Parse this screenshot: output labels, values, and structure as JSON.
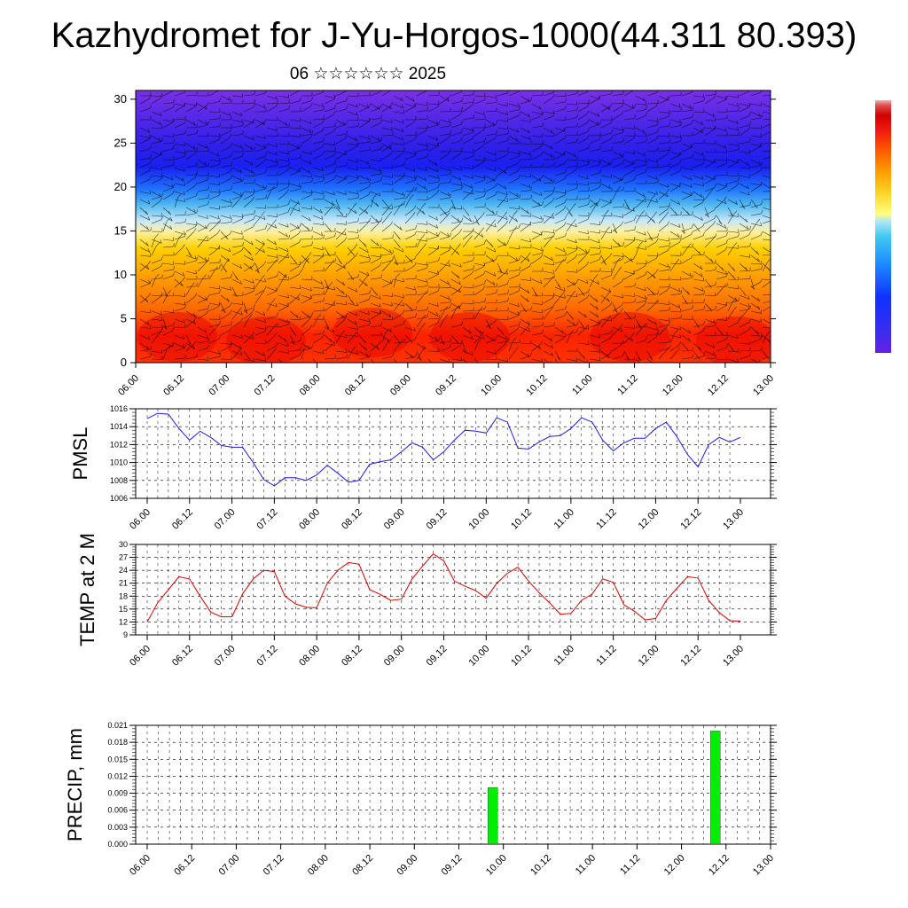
{
  "title": "Kazhydromet for J-Yu-Horgos-1000(44.311 80.393)",
  "subtitle": "06 ☆☆☆☆☆☆ 2025",
  "time_labels": [
    "06.00",
    "06.12",
    "07.00",
    "07.12",
    "08.00",
    "08.12",
    "09.00",
    "09.12",
    "10.00",
    "10.12",
    "11.00",
    "11.12",
    "12.00",
    "12.12",
    "13.00"
  ],
  "colors": {
    "pmsl_line": "#1a1aff",
    "temp_line": "#e00000",
    "precip_bar": "#00ee00",
    "colorbar": [
      "#6a1fe6",
      "#3a2df0",
      "#1030ff",
      "#1e90ff",
      "#40c8f0",
      "#b0e4f5",
      "#ffff80",
      "#ffd020",
      "#ff9a00",
      "#ff5a00",
      "#f01a10",
      "#d00000",
      "#e05050",
      "#f0b0b0"
    ]
  },
  "chart_data": [
    {
      "type": "heatmap",
      "title": "Kazhydromet for J-Yu-Horgos-1000(44.311 80.393)",
      "subtitle": "06 ☆☆☆☆☆☆ 2025",
      "x_ticks": [
        "06.00",
        "06.12",
        "07.00",
        "07.12",
        "08.00",
        "08.12",
        "09.00",
        "09.12",
        "10.00",
        "10.12",
        "11.00",
        "11.12",
        "12.00",
        "12.12",
        "13.00"
      ],
      "y_ticks": [
        0,
        5,
        10,
        15,
        20,
        25,
        30
      ],
      "ylim": [
        0,
        31
      ],
      "overlay": "wind barbs",
      "color_bands": [
        {
          "from": 0,
          "to": 5,
          "color": "red"
        },
        {
          "from": 5,
          "to": 13,
          "color": "orange"
        },
        {
          "from": 13,
          "to": 17,
          "color": "yellow"
        },
        {
          "from": 17,
          "to": 21,
          "color": "light blue"
        },
        {
          "from": 21,
          "to": 26,
          "color": "blue"
        },
        {
          "from": 26,
          "to": 31,
          "color": "violet"
        }
      ]
    },
    {
      "type": "line",
      "ylabel": "PMSL",
      "x_ticks": [
        "06.00",
        "06.12",
        "07.00",
        "07.12",
        "08.00",
        "08.12",
        "09.00",
        "09.12",
        "10.00",
        "10.12",
        "11.00",
        "11.12",
        "12.00",
        "12.12",
        "13.00"
      ],
      "y_ticks": [
        1006,
        1008,
        1010,
        1012,
        1014,
        1016
      ],
      "ylim": [
        1006,
        1016
      ],
      "grid": true,
      "series": [
        {
          "values": [
            1014.9,
            1015.5,
            1015.4,
            1013.8,
            1012.5,
            1013.5,
            1012.8,
            1011.9,
            1011.7,
            1011.7,
            1010.0,
            1008.1,
            1007.4,
            1008.3,
            1008.3,
            1008.0,
            1008.6,
            1009.7,
            1008.8,
            1007.8,
            1008.0,
            1009.8,
            1010.1,
            1010.3,
            1011.2,
            1012.2,
            1011.7,
            1010.3,
            1011.2,
            1012.5,
            1013.6,
            1013.5,
            1013.3,
            1015.0,
            1014.5,
            1011.6,
            1011.5,
            1012.3,
            1012.9,
            1013.0,
            1013.8,
            1015.0,
            1014.5,
            1012.5,
            1011.3,
            1012.2,
            1012.7,
            1012.7,
            1013.8,
            1014.5,
            1012.9,
            1010.9,
            1009.5,
            1012.0,
            1012.8,
            1012.3,
            1012.8
          ]
        }
      ]
    },
    {
      "type": "line",
      "ylabel": "TEMP at 2 M",
      "x_ticks": [
        "06.00",
        "06.12",
        "07.00",
        "07.12",
        "08.00",
        "08.12",
        "09.00",
        "09.12",
        "10.00",
        "10.12",
        "11.00",
        "11.12",
        "12.00",
        "12.12",
        "13.00"
      ],
      "y_ticks": [
        9,
        12,
        15,
        18,
        21,
        24,
        27,
        30
      ],
      "ylim": [
        9,
        30
      ],
      "grid": true,
      "series": [
        {
          "values": [
            12,
            16.5,
            19.5,
            22.5,
            22,
            18,
            14.3,
            13.2,
            13.2,
            18.5,
            22,
            24,
            23.7,
            18,
            16.2,
            15.4,
            15.3,
            21,
            24,
            25.8,
            25.4,
            19.5,
            18.4,
            17,
            17.3,
            22,
            25,
            27.8,
            26.2,
            21.5,
            20.3,
            19.3,
            17.5,
            21,
            23.3,
            24.7,
            21.5,
            18.8,
            16.4,
            13.8,
            14,
            17,
            18.5,
            22,
            21.2,
            16,
            14.5,
            12.5,
            12.8,
            17,
            19.8,
            22.5,
            22.2,
            17,
            14.2,
            12.3,
            12.2
          ]
        }
      ]
    },
    {
      "type": "bar",
      "ylabel": "PRECIP, mm",
      "x_ticks": [
        "06.00",
        "06.12",
        "07.00",
        "07.12",
        "08.00",
        "08.12",
        "09.00",
        "09.12",
        "10.00",
        "10.12",
        "11.00",
        "11.12",
        "12.00",
        "12.12",
        "13.00"
      ],
      "y_ticks": [
        0.0,
        0.003,
        0.006,
        0.009,
        0.012,
        0.015,
        0.018,
        0.021
      ],
      "y_tick_labels": [
        "0.000",
        "0.003",
        "0.006",
        "0.009",
        "0.012",
        "0.015",
        "0.018",
        "0.021"
      ],
      "ylim": [
        0,
        0.021
      ],
      "grid": true,
      "bars": [
        {
          "time": "09.21",
          "value": 0.01
        },
        {
          "time": "12.09",
          "value": 0.02
        }
      ]
    }
  ]
}
